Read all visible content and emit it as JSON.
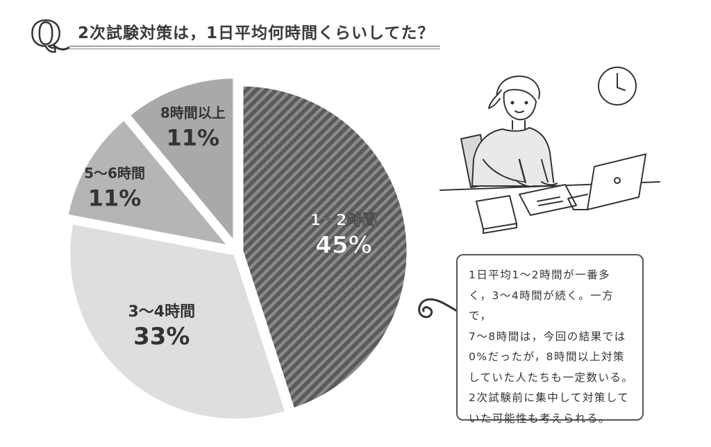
{
  "header": {
    "q_mark": "Q",
    "title": "2次試験対策は，1日平均何時間くらいしてた？"
  },
  "chart_data": {
    "type": "pie",
    "title": "2次試験対策は，1日平均何時間くらいしてた？",
    "slices": [
      {
        "label": "1〜2時間",
        "value": 45,
        "value_label": "45%",
        "fill": "hatched",
        "color": "#5f5f5f",
        "exploded": false
      },
      {
        "label": "3〜4時間",
        "value": 33,
        "value_label": "33%",
        "fill": "solid",
        "color": "#dedede",
        "exploded": true
      },
      {
        "label": "5〜6時間",
        "value": 11,
        "value_label": "11%",
        "fill": "solid",
        "color": "#b5b5b5",
        "exploded": true
      },
      {
        "label": "8時間以上",
        "value": 11,
        "value_label": "11%",
        "fill": "solid",
        "color": "#a9a9a9",
        "exploded": true
      }
    ],
    "start": "12 o'clock",
    "direction": "clockwise"
  },
  "note": {
    "text": "1日平均1〜2時間が一番多\nく，3〜4時間が続く。一方で，\n7〜8時間は，今回の結果では\n0%だったが，8時間以上対策\nしていた人たちも一定数いる。\n2次試験前に集中して対策して\nいた可能性も考えられる。"
  },
  "illustration": {
    "description_icons": [
      "clock-icon",
      "student-studying-illustration",
      "laptop-icon",
      "book-icon",
      "pen-icon"
    ]
  },
  "colors": {
    "hatch_dark": "#5a5a5a",
    "hatch_light": "#8a8a8a",
    "label_dark": "#333333",
    "label_light": "#ffffff"
  }
}
